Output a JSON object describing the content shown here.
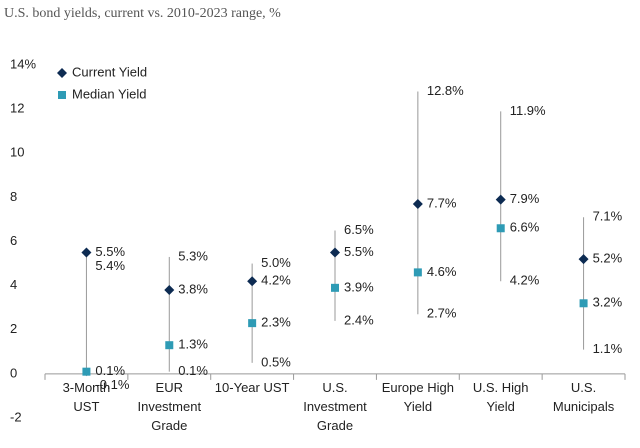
{
  "chart_data": {
    "type": "range",
    "title": "U.S. bond yields, current vs. 2010-2023 range, %",
    "categories": [
      [
        "3-Month",
        "UST"
      ],
      [
        "EUR",
        "Investment",
        "Grade"
      ],
      [
        "10-Year UST"
      ],
      [
        "U.S.",
        "Investment",
        "Grade"
      ],
      [
        "Europe High",
        "Yield"
      ],
      [
        "U.S. High",
        "Yield"
      ],
      [
        "U.S.",
        "Municipals"
      ]
    ],
    "range": {
      "color": "#999999",
      "high": [
        5.4,
        5.3,
        5.0,
        6.5,
        12.8,
        11.9,
        7.1
      ],
      "high_labels": [
        "5.4%",
        "5.3%",
        "5.0%",
        "6.5%",
        "12.8%",
        "11.9%",
        "7.1%"
      ],
      "low": [
        -0.1,
        0.1,
        0.5,
        2.4,
        2.7,
        4.2,
        1.1
      ],
      "low_labels": [
        "-0.1%",
        "0.1%",
        "0.5%",
        "2.4%",
        "2.7%",
        "4.2%",
        "1.1%"
      ]
    },
    "series": [
      {
        "name": "Current Yield",
        "marker": "diamond",
        "color": "#0d2b52",
        "values": [
          5.5,
          3.8,
          4.2,
          5.5,
          7.7,
          7.9,
          5.2
        ],
        "value_labels": [
          "5.5%",
          "3.8%",
          "4.2%",
          "5.5%",
          "7.7%",
          "7.9%",
          "5.2%"
        ]
      },
      {
        "name": "Median Yield",
        "marker": "square",
        "color": "#2e9bb5",
        "values": [
          0.1,
          1.3,
          2.3,
          3.9,
          4.6,
          6.6,
          3.2
        ],
        "value_labels": [
          "0.1%",
          "1.3%",
          "2.3%",
          "3.9%",
          "4.6%",
          "6.6%",
          "3.2%"
        ]
      }
    ],
    "ylim": [
      -2,
      14
    ],
    "yticks": [
      -2,
      0,
      2,
      4,
      6,
      8,
      10,
      12,
      {
        "value": 14,
        "label": "14%"
      }
    ],
    "legend": "top-left"
  }
}
